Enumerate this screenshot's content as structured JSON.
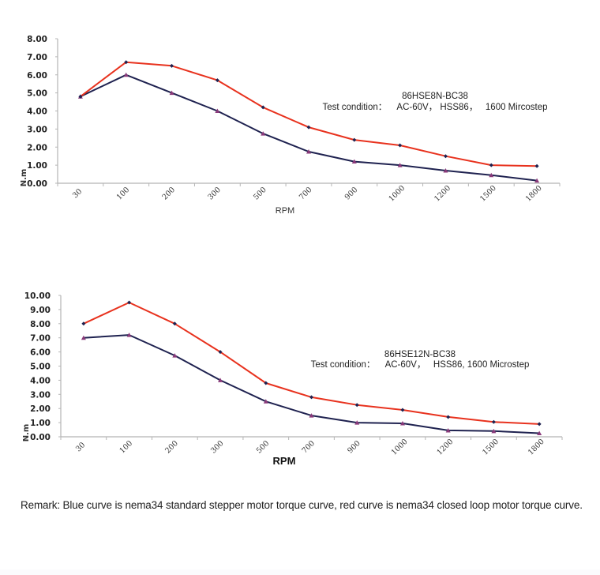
{
  "chart_data": [
    {
      "type": "line",
      "title": "",
      "annotation": [
        "86HSE8N-BC38",
        "Test condition：    AC-60V， HSS86，   1600 Mircostep"
      ],
      "xlabel": "RPM",
      "ylabel": "N.m",
      "categories": [
        "30",
        "100",
        "200",
        "300",
        "500",
        "700",
        "900",
        "1000",
        "1200",
        "1500",
        "1800"
      ],
      "ylim": [
        0,
        8
      ],
      "yticks": [
        "0.00",
        "1.00",
        "2.00",
        "3.00",
        "4.00",
        "5.00",
        "6.00",
        "7.00",
        "8.00"
      ],
      "grid": false,
      "legend": "none",
      "series": [
        {
          "name": "nema34 closed loop motor torque curve",
          "color": "#e8321e",
          "marker": "diamond",
          "marker_color": "#1f2250",
          "values": [
            4.8,
            6.7,
            6.5,
            5.7,
            4.2,
            3.1,
            2.4,
            2.1,
            1.5,
            1.0,
            0.95
          ]
        },
        {
          "name": "nema34 standard stepper motor torque curve",
          "color": "#1f2250",
          "marker": "triangle",
          "marker_color": "#8a3a7a",
          "values": [
            4.8,
            6.0,
            5.0,
            4.0,
            2.75,
            1.75,
            1.2,
            1.0,
            0.7,
            0.45,
            0.15
          ]
        }
      ]
    },
    {
      "type": "line",
      "title": "",
      "annotation": [
        "86HSE12N-BC38",
        "Test condition：    AC-60V，   HSS86, 1600 Microstep"
      ],
      "xlabel": "RPM",
      "ylabel": "N.m",
      "categories": [
        "30",
        "100",
        "200",
        "300",
        "500",
        "700",
        "900",
        "1000",
        "1200",
        "1500",
        "1800"
      ],
      "ylim": [
        0,
        10
      ],
      "yticks": [
        "0.00",
        "1.00",
        "2.00",
        "3.00",
        "4.00",
        "5.00",
        "6.00",
        "7.00",
        "8.00",
        "9.00",
        "10.00"
      ],
      "grid": false,
      "legend": "none",
      "series": [
        {
          "name": "nema34 closed loop motor torque curve",
          "color": "#e8321e",
          "marker": "diamond",
          "marker_color": "#1f2250",
          "values": [
            8.0,
            9.5,
            8.0,
            6.0,
            3.8,
            2.8,
            2.25,
            1.9,
            1.4,
            1.05,
            0.9
          ]
        },
        {
          "name": "nema34 standard stepper motor torque curve",
          "color": "#1f2250",
          "marker": "triangle",
          "marker_color": "#8a3a7a",
          "values": [
            7.0,
            7.2,
            5.75,
            4.0,
            2.5,
            1.5,
            1.0,
            0.95,
            0.45,
            0.4,
            0.25
          ]
        }
      ]
    }
  ],
  "remark": "Remark: Blue curve is nema34 standard stepper motor torque curve, red curve is nema34 closed loop motor torque curve."
}
